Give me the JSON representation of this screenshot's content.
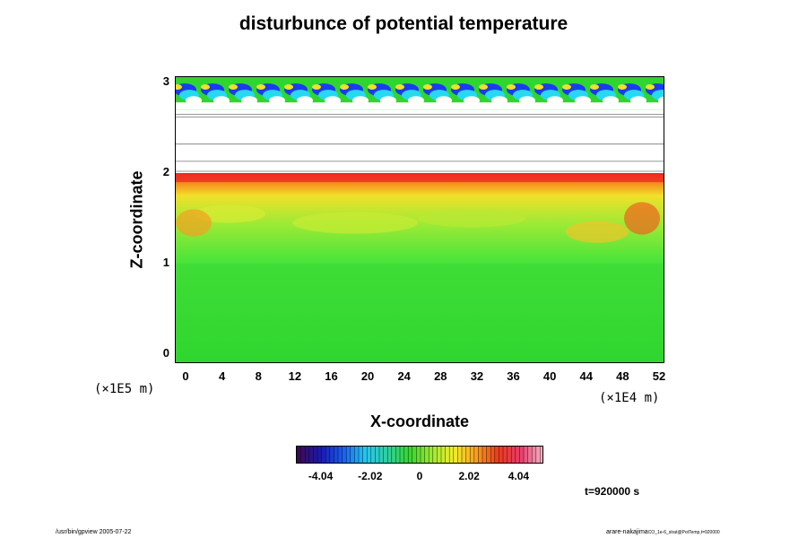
{
  "chart_data": {
    "type": "heatmap",
    "title": "disturbunce of potential temperature",
    "xlabel": "X-coordinate",
    "ylabel": "Z-coordinate",
    "x_scale_label": "(×1E4 m)",
    "y_scale_label": "(×1E5 m)",
    "xlim": [
      0,
      52
    ],
    "ylim": [
      0,
      3
    ],
    "x_ticks": [
      "0",
      "4",
      "8",
      "12",
      "16",
      "20",
      "24",
      "28",
      "32",
      "36",
      "40",
      "44",
      "48",
      "52"
    ],
    "y_ticks": [
      "0",
      "1",
      "2",
      "3"
    ],
    "colorbar": {
      "ticks": [
        "-4.04",
        "-2.02",
        "0",
        "2.02",
        "4.04"
      ],
      "range": [
        -5.05,
        5.05
      ],
      "colormap": "rainbow (purple-blue-cyan-green-yellow-red-pink)"
    },
    "regions": [
      {
        "z_range": [
          0,
          1.0
        ],
        "value_approx": 0.0,
        "description": "green"
      },
      {
        "z_range": [
          1.0,
          1.7
        ],
        "value_approx": 1.0,
        "description": "light green / yellow-green"
      },
      {
        "z_range": [
          1.7,
          2.0
        ],
        "value_approx": 3.5,
        "description": "yellow-orange to red"
      },
      {
        "z_range": [
          2.0,
          2.7
        ],
        "value_approx": null,
        "description": "white (blank)"
      },
      {
        "z_range": [
          2.7,
          3.0
        ],
        "value_approx": -2.0,
        "description": "blue / cyan vortices over green"
      }
    ],
    "time_label": "t=920000 s"
  },
  "footer": {
    "left": "/usr/bin/gpview 2005-07-22",
    "right": "arare-nakajima",
    "right_small": "CO_1e-6_strat@PotTemp,t=920000"
  },
  "colors": {
    "green": "#2fd62f",
    "yellow": "#f2ee2a",
    "orange": "#f79a1d",
    "red": "#ee2a1d",
    "blue": "#1a3cf0",
    "cyan": "#26d9f0"
  }
}
